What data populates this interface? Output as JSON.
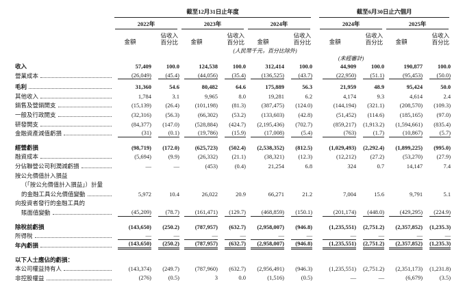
{
  "document": {
    "header": {
      "annual_group": "截至12月31日止年度",
      "interim_group": "截至6月30日止六個月",
      "annual_years": [
        "2022年",
        "2023年",
        "2024年"
      ],
      "interim_years": [
        "2024年",
        "2025年"
      ],
      "amount_label": "金額",
      "pct_label_l1": "佔收入",
      "pct_label_l2": "百分比",
      "unit_note": "(人民幣千元，百分比除外)",
      "unaudited_note": "(未經審計)"
    },
    "rows": [
      {
        "label": "收入",
        "bold": true,
        "dots": false,
        "values": [
          "57,409",
          "100.0",
          "124,538",
          "100.0",
          "312,414",
          "100.0",
          "44,909",
          "100.0",
          "190,877",
          "100.0"
        ]
      },
      {
        "label": "營業成本",
        "dots": true,
        "rule": "single",
        "values": [
          "(26,049)",
          "(45.4)",
          "(44,056)",
          "(35.4)",
          "(136,525)",
          "(43.7)",
          "(22,950)",
          "(51.1)",
          "(95,453)",
          "(50.0)"
        ]
      },
      {
        "label": "毛利",
        "bold": true,
        "dots": true,
        "gap": "sm",
        "values": [
          "31,360",
          "54.6",
          "80,482",
          "64.6",
          "175,889",
          "56.3",
          "21,959",
          "48.9",
          "95,424",
          "50.0"
        ]
      },
      {
        "label": "其他收入",
        "dots": true,
        "values": [
          "1,784",
          "3.1",
          "9,965",
          "8.0",
          "19,281",
          "6.2",
          "4,174",
          "9.3",
          "4,614",
          "2.4"
        ]
      },
      {
        "label": "銷售及營銷開支",
        "dots": true,
        "values": [
          "(15,139)",
          "(26.4)",
          "(101,198)",
          "(81.3)",
          "(387,475)",
          "(124.0)",
          "(144,194)",
          "(321.1)",
          "(208,570)",
          "(109.3)"
        ]
      },
      {
        "label": "一般及行政開支",
        "dots": true,
        "values": [
          "(32,316)",
          "(56.3)",
          "(66,302)",
          "(53.2)",
          "(133,603)",
          "(42.8)",
          "(51,452)",
          "(114.6)",
          "(185,165)",
          "(97.0)"
        ]
      },
      {
        "label": "研發開支",
        "dots": true,
        "values": [
          "(84,377)",
          "(147.0)",
          "(528,884)",
          "(424.7)",
          "(2,195,436)",
          "(702.7)",
          "(859,217)",
          "(1,913.2)",
          "(1,594,661)",
          "(835.4)"
        ]
      },
      {
        "label": "金融資產減值虧損",
        "dots": true,
        "rule": "single",
        "values": [
          "(31)",
          "(0.1)",
          "(19,786)",
          "(15.9)",
          "(17,008)",
          "(5.4)",
          "(763)",
          "(1.7)",
          "(10,867)",
          "(5.7)"
        ]
      },
      {
        "label": "經營虧損",
        "bold": true,
        "gap": "lg",
        "values": [
          "(98,719)",
          "(172.0)",
          "(625,723)",
          "(502.4)",
          "(2,538,352)",
          "(812.5)",
          "(1,029,493)",
          "(2,292.4)",
          "(1,899,225)",
          "(995.0)"
        ]
      },
      {
        "label": "融資成本",
        "dots": true,
        "values": [
          "(5,694)",
          "(9.9)",
          "(26,332)",
          "(21.1)",
          "(38,321)",
          "(12.3)",
          "(12,212)",
          "(27.2)",
          "(53,270)",
          "(27.9)"
        ]
      },
      {
        "label": "分佔聯營公司利潤減虧損",
        "dots": true,
        "values": [
          "—",
          "—",
          "(453)",
          "(0.4)",
          "21,254",
          "6.8",
          "324",
          "0.7",
          "14,147",
          "7.4"
        ]
      },
      {
        "label": "按公允價值計入損益",
        "values": null
      },
      {
        "label": "（「按公允價值計入損益」）計量",
        "indent": true,
        "values": null
      },
      {
        "label": "的金融工具公允價值變動",
        "indent": true,
        "dots": true,
        "values": [
          "5,972",
          "10.4",
          "26,022",
          "20.9",
          "66,271",
          "21.2",
          "7,004",
          "15.6",
          "9,791",
          "5.1"
        ]
      },
      {
        "label": "向投資者發行的金融工具的",
        "values": null
      },
      {
        "label": "賬面值變動",
        "indent": true,
        "dots": true,
        "rule": "single",
        "values": [
          "(45,209)",
          "(78.7)",
          "(161,471)",
          "(129.7)",
          "(468,859)",
          "(150.1)",
          "(201,174)",
          "(448.0)",
          "(429,295)",
          "(224.9)"
        ]
      },
      {
        "label": "除稅前虧損",
        "bold": true,
        "gap": "lg",
        "values": [
          "(143,650)",
          "(250.2)",
          "(787,957)",
          "(632.7)",
          "(2,958,007)",
          "(946.8)",
          "(1,235,551)",
          "(2,751.2)",
          "(2,357,852)",
          "(1,235.3)"
        ]
      },
      {
        "label": "所得稅",
        "dots": true,
        "rule": "single",
        "values": [
          "—",
          "—",
          "—",
          "—",
          "—",
          "—",
          "—",
          "—",
          "—",
          "—"
        ]
      },
      {
        "label": "年內虧損",
        "bold": true,
        "dots": true,
        "rule": "double",
        "values": [
          "(143,650)",
          "(250.2)",
          "(787,957)",
          "(632.7)",
          "(2,958,007)",
          "(946.8)",
          "(1,235,551)",
          "(2,751.2)",
          "(2,357,852)",
          "(1,235.3)"
        ]
      },
      {
        "label": "以下人士應佔的虧損：",
        "bold": true,
        "gap": "lg",
        "values": null
      },
      {
        "label": "本公司權益持有人",
        "dots": true,
        "values": [
          "(143,374)",
          "(249.7)",
          "(787,960)",
          "(632.7)",
          "(2,956,491)",
          "(946.3)",
          "(1,235,551)",
          "(2,751.2)",
          "(2,351,173)",
          "(1,231.8)"
        ]
      },
      {
        "label": "非控股權益",
        "dots": true,
        "rule": "single",
        "values": [
          "(276)",
          "(0.5)",
          "3",
          "0.0",
          "(1,516)",
          "(0.5)",
          "—",
          "—",
          "(6,679)",
          "(3.5)"
        ]
      }
    ]
  }
}
